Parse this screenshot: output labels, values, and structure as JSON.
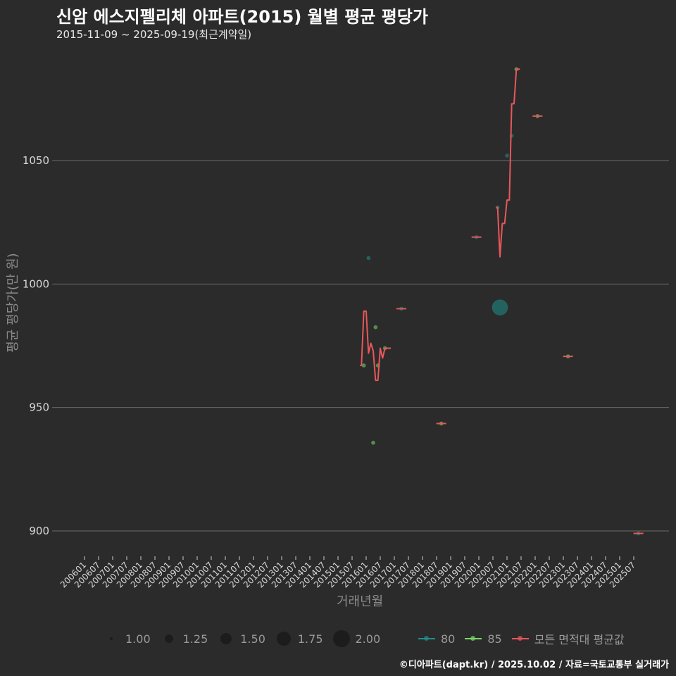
{
  "header": {
    "title": "신암 에스지펠리체 아파트(2015) 월별 평균 평당가",
    "subtitle": "2015-11-09 ~ 2025-09-19(최근계약일)"
  },
  "axes": {
    "ylabel": "평균 평당가(만 원)",
    "xlabel": "거래년월"
  },
  "legend": {
    "size_items": [
      {
        "label": "1.00",
        "r": 2
      },
      {
        "label": "1.25",
        "r": 6
      },
      {
        "label": "1.50",
        "r": 8
      },
      {
        "label": "1.75",
        "r": 10
      },
      {
        "label": "2.00",
        "r": 12
      }
    ],
    "color_items": [
      {
        "label": "80",
        "color": "#1f8f8a"
      },
      {
        "label": "85",
        "color": "#7bd86a"
      },
      {
        "label": "모든 면적대 평균값",
        "color": "#e8575a"
      }
    ]
  },
  "footer": {
    "credit": "©디아파트(dapt.kr) / 2025.10.02 / 자료=국토교통부 실거래가"
  },
  "colors": {
    "background": "#2b2b2b",
    "grid": "#6b6b6b",
    "series_80": "#1f8f8a",
    "series_85": "#7bd86a",
    "series_avg": "#e8575a"
  },
  "chart_data": {
    "type": "line",
    "title": "신암 에스지펠리체 아파트(2015) 월별 평균 평당가",
    "subtitle": "2015-11-09 ~ 2025-09-19(최근계약일)",
    "xlabel": "거래년월",
    "ylabel": "평균 평당가(만 원)",
    "ylim": [
      885,
      1093
    ],
    "yticks": [
      900,
      950,
      1000,
      1050
    ],
    "grid": true,
    "legend_position": "bottom",
    "x_tick_labels": [
      "200601",
      "200607",
      "200701",
      "200707",
      "200801",
      "200807",
      "200901",
      "200907",
      "201001",
      "201007",
      "201101",
      "201107",
      "201201",
      "201207",
      "201301",
      "201307",
      "201401",
      "201407",
      "201501",
      "201507",
      "201601",
      "201607",
      "201701",
      "201707",
      "201801",
      "201807",
      "201901",
      "201907",
      "202001",
      "202007",
      "202101",
      "202107",
      "202201",
      "202207",
      "202301",
      "202307",
      "202401",
      "202407",
      "202501",
      "202507"
    ],
    "series": [
      {
        "name": "모든 면적대 평균값",
        "type": "line",
        "segments": [
          {
            "x": [
              "201511",
              "201512",
              "201601",
              "201602",
              "201603",
              "201604",
              "201605",
              "201606",
              "201607",
              "201608",
              "201609",
              "201610"
            ],
            "y": [
              967,
              989,
              989,
              972,
              976,
              973,
              961,
              961,
              974,
              970,
              974,
              974
            ]
          },
          {
            "x": [
              "201704"
            ],
            "y": [
              990
            ]
          },
          {
            "x": [
              "201809"
            ],
            "y": [
              943.5
            ]
          },
          {
            "x": [
              "201912"
            ],
            "y": [
              1019
            ]
          },
          {
            "x": [
              "202009",
              "202010",
              "202011",
              "202012",
              "202101",
              "202102",
              "202103",
              "202104",
              "202105"
            ],
            "y": [
              1031,
              1011,
              1024.5,
              1024.5,
              1034,
              1034,
              1073,
              1073,
              1087
            ]
          },
          {
            "x": [
              "202202"
            ],
            "y": [
              1068
            ]
          },
          {
            "x": [
              "202303"
            ],
            "y": [
              970.7
            ]
          },
          {
            "x": [
              "202509"
            ],
            "y": [
              899
            ]
          }
        ]
      },
      {
        "name": "80",
        "type": "scatter",
        "points": [
          {
            "x": "201602",
            "y": 1010.5,
            "size": 1.0
          },
          {
            "x": "202010",
            "y": 990.5,
            "size": 2.0
          },
          {
            "x": "202101",
            "y": 1052,
            "size": 1.0
          },
          {
            "x": "202103",
            "y": 1060,
            "size": 1.0
          },
          {
            "x": "202009",
            "y": 1031,
            "size": 1.0
          },
          {
            "x": "201704",
            "y": 990,
            "size": 1.0
          },
          {
            "x": "201912",
            "y": 1019,
            "size": 1.0
          },
          {
            "x": "202509",
            "y": 899,
            "size": 1.0
          }
        ]
      },
      {
        "name": "85",
        "type": "scatter",
        "points": [
          {
            "x": "201512",
            "y": 967,
            "size": 1.0
          },
          {
            "x": "201605",
            "y": 982.5,
            "size": 1.0
          },
          {
            "x": "201604",
            "y": 935.7,
            "size": 1.0
          },
          {
            "x": "201606",
            "y": 967,
            "size": 1.0
          },
          {
            "x": "201609",
            "y": 974,
            "size": 1.0
          },
          {
            "x": "201809",
            "y": 943.5,
            "size": 1.0
          },
          {
            "x": "202105",
            "y": 1087,
            "size": 1.0
          },
          {
            "x": "202202",
            "y": 1068,
            "size": 1.0
          },
          {
            "x": "202303",
            "y": 970.7,
            "size": 1.0
          }
        ]
      }
    ]
  }
}
